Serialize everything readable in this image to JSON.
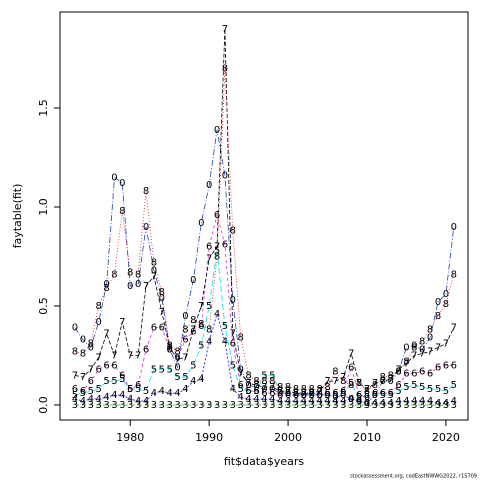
{
  "chart_data": {
    "type": "line",
    "x_label": "fit$data$years",
    "y_label": "faytable(fit)",
    "footnote": "stockassessment.org, codEastNWWG2022, r15709",
    "x": [
      1973,
      1974,
      1975,
      1976,
      1977,
      1978,
      1979,
      1980,
      1981,
      1982,
      1983,
      1984,
      1985,
      1986,
      1987,
      1988,
      1989,
      1990,
      1991,
      1992,
      1993,
      1994,
      1995,
      1996,
      1997,
      1998,
      1999,
      2000,
      2001,
      2002,
      2003,
      2004,
      2005,
      2006,
      2007,
      2008,
      2009,
      2010,
      2011,
      2012,
      2013,
      2014,
      2015,
      2016,
      2017,
      2018,
      2019,
      2020,
      2021
    ],
    "xlim": [
      1971.1,
      2022.8
    ],
    "xticks": [
      1980,
      1990,
      2000,
      2010,
      2020
    ],
    "ylim": [
      -0.076,
      1.985
    ],
    "yticks": [
      {
        "value": 0,
        "label": "0.0"
      },
      0.5,
      {
        "value": 1,
        "label": "1.0"
      },
      1.5
    ],
    "series": [
      {
        "name": "0",
        "color": "#1f3fbf",
        "values": [
          0.39,
          0.33,
          0.29,
          0.42,
          0.61,
          1.15,
          1.12,
          0.6,
          0.61,
          0.9,
          0.68,
          0.54,
          0.28,
          0.19,
          0.45,
          0.63,
          0.92,
          1.11,
          1.39,
          1.16,
          0.53,
          0.18,
          0.1,
          0.09,
          0.08,
          0.08,
          0.06,
          0.06,
          0.05,
          0.05,
          0.06,
          0.05,
          0.05,
          0.04,
          0.05,
          0.03,
          0.02,
          0.01,
          0.05,
          0.12,
          0.12,
          0.17,
          0.29,
          0.3,
          0.28,
          0.34,
          0.52,
          0.56,
          0.9
        ]
      },
      {
        "name": "3",
        "color": "#22b822",
        "values": [
          0,
          0,
          0,
          0,
          0,
          0,
          0,
          0,
          0,
          0,
          0,
          0,
          0,
          0,
          0,
          0,
          0,
          0,
          0,
          0,
          0,
          0,
          0,
          0,
          0,
          0,
          0,
          0,
          0,
          0,
          0,
          0,
          0,
          0,
          0,
          0,
          0,
          0,
          0,
          0,
          0,
          0,
          0,
          0,
          0,
          0,
          0,
          0,
          0
        ]
      },
      {
        "name": "4",
        "color": "#0000ff",
        "values": [
          0.03,
          0.02,
          0.03,
          0.03,
          0.04,
          0.05,
          0.05,
          0.03,
          0.02,
          0.02,
          0.06,
          0.07,
          0.06,
          0.06,
          0.08,
          0.12,
          0.13,
          0.32,
          0.46,
          0.32,
          0.08,
          0.04,
          0.03,
          0.03,
          0.03,
          0.03,
          0.02,
          0.02,
          0.02,
          0.02,
          0.02,
          0.02,
          0.02,
          0.02,
          0.02,
          0.03,
          0.02,
          0.01,
          0.01,
          0.01,
          0.01,
          0.02,
          0.02,
          0.02,
          0.02,
          0.02,
          0.01,
          0.01,
          0.02
        ]
      },
      {
        "name": "5",
        "color": "#00e5e5",
        "values": [
          0.05,
          0.06,
          0.07,
          0.08,
          0.12,
          0.12,
          0.13,
          0.08,
          0.08,
          0.07,
          0.18,
          0.18,
          0.18,
          0.14,
          0.14,
          0.2,
          0.3,
          0.5,
          0.78,
          0.4,
          0.2,
          0.08,
          0.07,
          0.07,
          0.15,
          0.15,
          0.07,
          0.06,
          0.06,
          0.05,
          0.05,
          0.05,
          0.05,
          0.05,
          0.06,
          0.11,
          0.04,
          0.05,
          0.05,
          0.05,
          0.05,
          0.07,
          0.09,
          0.1,
          0.09,
          0.08,
          0.08,
          0.07,
          0.1
        ]
      },
      {
        "name": "6",
        "color": "#e020e0",
        "values": [
          0.08,
          0.07,
          0.12,
          0.18,
          0.2,
          0.2,
          0.15,
          0.08,
          0.1,
          0.28,
          0.39,
          0.39,
          0.28,
          0.24,
          0.33,
          0.37,
          0.4,
          0.8,
          0.96,
          0.81,
          0.31,
          0.1,
          0.07,
          0.07,
          0.06,
          0.06,
          0.05,
          0.05,
          0.05,
          0.05,
          0.05,
          0.05,
          0.06,
          0.06,
          0.07,
          0.19,
          0.05,
          0.04,
          0.06,
          0.06,
          0.06,
          0.1,
          0.16,
          0.16,
          0.17,
          0.16,
          0.19,
          0.2,
          0.2
        ]
      },
      {
        "name": "7",
        "color": "#000000",
        "values": [
          0.15,
          0.14,
          0.18,
          0.24,
          0.36,
          0.25,
          0.42,
          0.25,
          0.25,
          0.6,
          0.65,
          0.47,
          0.29,
          0.23,
          0.24,
          0.38,
          0.5,
          0.74,
          0.8,
          1.9,
          0.36,
          0.16,
          0.11,
          0.1,
          0.09,
          0.09,
          0.07,
          0.07,
          0.06,
          0.06,
          0.06,
          0.07,
          0.12,
          0.12,
          0.14,
          0.26,
          0.11,
          0.08,
          0.11,
          0.12,
          0.13,
          0.18,
          0.21,
          0.25,
          0.26,
          0.27,
          0.29,
          0.31,
          0.39
        ]
      },
      {
        "name": "8",
        "color": "#e02020",
        "values": [
          0.27,
          0.26,
          0.31,
          0.5,
          0.59,
          0.66,
          0.98,
          0.67,
          0.66,
          1.08,
          0.72,
          0.57,
          0.3,
          0.27,
          0.38,
          0.43,
          0.41,
          0.38,
          0.75,
          1.7,
          0.88,
          0.34,
          0.15,
          0.12,
          0.12,
          0.12,
          0.09,
          0.09,
          0.08,
          0.08,
          0.08,
          0.08,
          0.09,
          0.17,
          0.12,
          0.1,
          0.11,
          0.07,
          0.1,
          0.14,
          0.15,
          0.17,
          0.22,
          0.29,
          0.32,
          0.38,
          0.45,
          0.51,
          0.66
        ]
      }
    ]
  }
}
